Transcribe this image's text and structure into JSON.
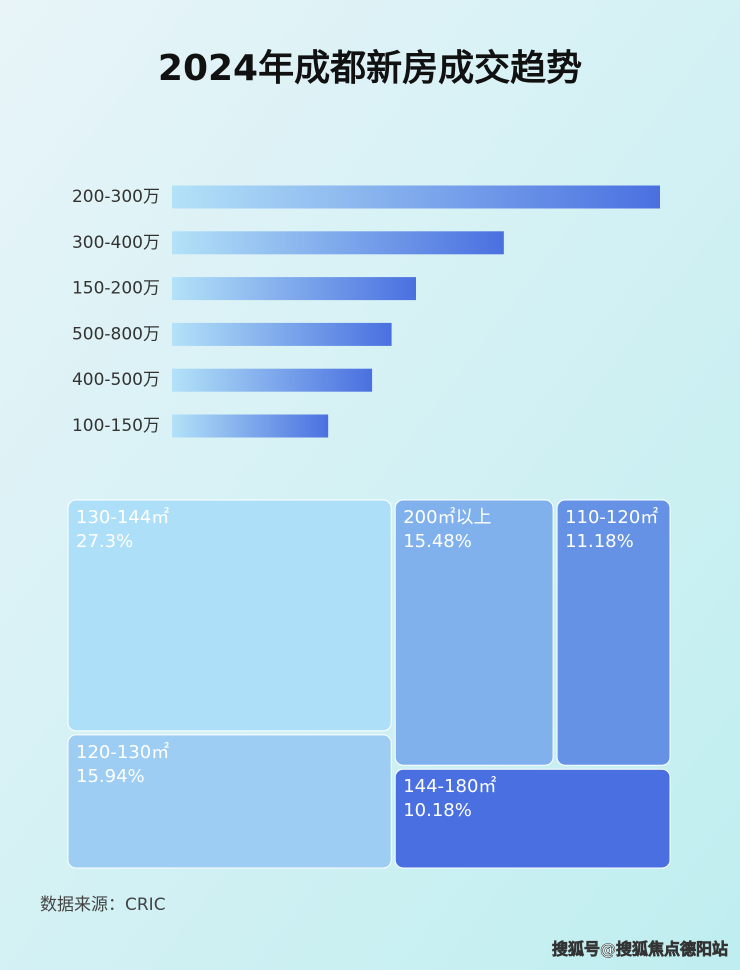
{
  "title": "2024年成都新房成交趋势",
  "chart_data": [
    {
      "type": "bar",
      "orientation": "horizontal",
      "categories": [
        "200-300万",
        "300-400万",
        "150-200万",
        "500-800万",
        "400-500万",
        "100-150万"
      ],
      "values": [
        100,
        68,
        50,
        45,
        41,
        32
      ],
      "xlim": [
        0,
        100
      ],
      "colors": [
        "#b3e2f8",
        "#4a70e0"
      ]
    },
    {
      "type": "treemap",
      "categories": [
        "130-144㎡",
        "120-130㎡",
        "200㎡以上",
        "110-120㎡",
        "144-180㎡"
      ],
      "values": [
        27.3,
        15.94,
        15.48,
        11.18,
        10.18
      ],
      "value_labels": [
        "27.3%",
        "15.94%",
        "15.48%",
        "11.18%",
        "10.18%"
      ],
      "colors": [
        "#ade0f8",
        "#9dcdf2",
        "#80b1ec",
        "#6592e5",
        "#4a6fe0"
      ]
    }
  ],
  "source": "数据来源：CRIC",
  "watermark": "搜狐号@搜狐焦点德阳站"
}
